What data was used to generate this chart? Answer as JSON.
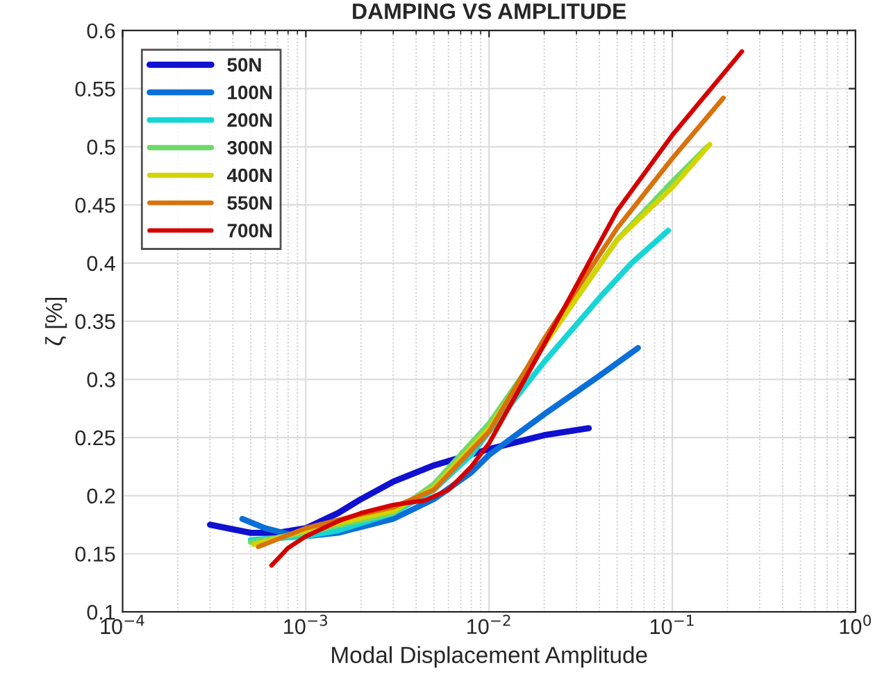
{
  "chart_data": {
    "type": "line",
    "title": "DAMPING VS AMPLITUDE",
    "xlabel": "Modal Displacement Amplitude",
    "ylabel": "ζ [%]",
    "log": "x",
    "xlim": [
      0.0001,
      1
    ],
    "ylim": [
      0.1,
      0.6
    ],
    "xticks": [
      {
        "value": 0.0001,
        "label": "10$^{−4}$"
      },
      {
        "value": 0.001,
        "label": "10$^{−3}$"
      },
      {
        "value": 0.01,
        "label": "10$^{−2}$"
      },
      {
        "value": 0.1,
        "label": "10$^{−1}$"
      },
      {
        "value": 1,
        "label": "10$^{0}$"
      }
    ],
    "yticks": [
      0.1,
      0.15,
      0.2,
      0.25,
      0.3,
      0.35,
      0.4,
      0.45,
      0.5,
      0.55,
      0.6
    ],
    "grid": true,
    "legend": "top left",
    "line_style": "solid",
    "marker": "none",
    "series": [
      {
        "name": "50N",
        "color": "#1010d0",
        "x": [
          0.0003,
          0.0005,
          0.0007,
          0.001,
          0.0015,
          0.002,
          0.003,
          0.005,
          0.01,
          0.02,
          0.035
        ],
        "values": [
          0.175,
          0.168,
          0.168,
          0.172,
          0.185,
          0.197,
          0.212,
          0.226,
          0.24,
          0.252,
          0.258
        ]
      },
      {
        "name": "100N",
        "color": "#0a6fd8",
        "x": [
          0.00045,
          0.0006,
          0.0008,
          0.001,
          0.0015,
          0.003,
          0.005,
          0.008,
          0.01,
          0.02,
          0.04,
          0.065
        ],
        "values": [
          0.18,
          0.172,
          0.167,
          0.165,
          0.168,
          0.18,
          0.197,
          0.22,
          0.235,
          0.27,
          0.303,
          0.327
        ]
      },
      {
        "name": "200N",
        "color": "#17d5d5",
        "x": [
          0.0005,
          0.001,
          0.0015,
          0.003,
          0.005,
          0.008,
          0.01,
          0.02,
          0.04,
          0.06,
          0.095
        ],
        "values": [
          0.162,
          0.165,
          0.17,
          0.185,
          0.205,
          0.235,
          0.255,
          0.315,
          0.37,
          0.4,
          0.428
        ]
      },
      {
        "name": "300N",
        "color": "#6fd86a",
        "x": [
          0.0005,
          0.001,
          0.003,
          0.005,
          0.01,
          0.02,
          0.05,
          0.1,
          0.155
        ],
        "values": [
          0.16,
          0.168,
          0.185,
          0.21,
          0.262,
          0.33,
          0.42,
          0.47,
          0.5
        ]
      },
      {
        "name": "400N",
        "color": "#d4d400",
        "x": [
          0.00052,
          0.001,
          0.003,
          0.005,
          0.01,
          0.02,
          0.05,
          0.1,
          0.16
        ],
        "values": [
          0.158,
          0.17,
          0.187,
          0.207,
          0.258,
          0.33,
          0.42,
          0.465,
          0.502
        ]
      },
      {
        "name": "550N",
        "color": "#d8720c",
        "x": [
          0.00055,
          0.001,
          0.002,
          0.003,
          0.005,
          0.01,
          0.02,
          0.05,
          0.1,
          0.19
        ],
        "values": [
          0.156,
          0.172,
          0.184,
          0.19,
          0.205,
          0.255,
          0.335,
          0.43,
          0.49,
          0.542
        ]
      },
      {
        "name": "700N",
        "color": "#d40000",
        "x": [
          0.00065,
          0.0008,
          0.001,
          0.0015,
          0.002,
          0.003,
          0.0045,
          0.006,
          0.008,
          0.01,
          0.02,
          0.05,
          0.1,
          0.24
        ],
        "values": [
          0.14,
          0.155,
          0.165,
          0.178,
          0.185,
          0.192,
          0.196,
          0.205,
          0.225,
          0.245,
          0.33,
          0.445,
          0.51,
          0.582
        ]
      }
    ]
  }
}
